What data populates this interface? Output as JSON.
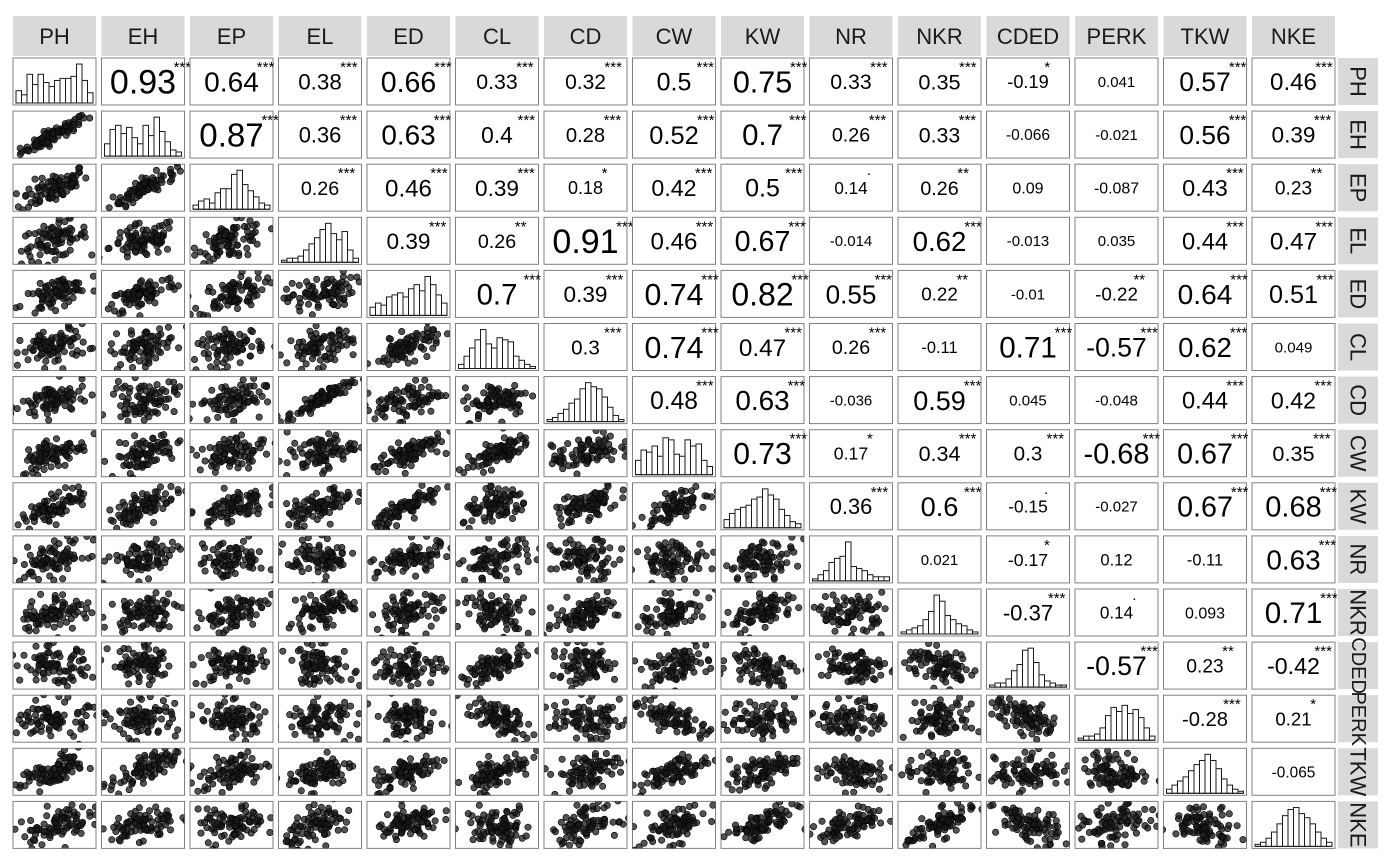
{
  "chart_data": {
    "type": "scatter-matrix",
    "variables": [
      "PH",
      "EH",
      "EP",
      "EL",
      "ED",
      "CL",
      "CD",
      "CW",
      "KW",
      "NR",
      "NKR",
      "CDED",
      "PERK",
      "TKW",
      "NKE"
    ],
    "upper_panel": "correlation coefficient with significance stars",
    "diagonal_panel": "histogram",
    "lower_panel": "scatter plot",
    "highlight_color": "#e0ffe0",
    "correlations": [
      {
        "row": "PH",
        "col": "EH",
        "r": "0.93",
        "stars": "***"
      },
      {
        "row": "PH",
        "col": "EP",
        "r": "0.64",
        "stars": "***"
      },
      {
        "row": "PH",
        "col": "EL",
        "r": "0.38",
        "stars": "***"
      },
      {
        "row": "PH",
        "col": "ED",
        "r": "0.66",
        "stars": "***"
      },
      {
        "row": "PH",
        "col": "CL",
        "r": "0.33",
        "stars": "***"
      },
      {
        "row": "PH",
        "col": "CD",
        "r": "0.32",
        "stars": "***"
      },
      {
        "row": "PH",
        "col": "CW",
        "r": "0.5",
        "stars": "***"
      },
      {
        "row": "PH",
        "col": "KW",
        "r": "0.75",
        "stars": "***"
      },
      {
        "row": "PH",
        "col": "NR",
        "r": "0.33",
        "stars": "***"
      },
      {
        "row": "PH",
        "col": "NKR",
        "r": "0.35",
        "stars": "***"
      },
      {
        "row": "PH",
        "col": "CDED",
        "r": "-0.19",
        "stars": "*"
      },
      {
        "row": "PH",
        "col": "PERK",
        "r": "0.041",
        "stars": ""
      },
      {
        "row": "PH",
        "col": "TKW",
        "r": "0.57",
        "stars": "***"
      },
      {
        "row": "PH",
        "col": "NKE",
        "r": "0.46",
        "stars": "***"
      },
      {
        "row": "EH",
        "col": "EP",
        "r": "0.87",
        "stars": "***"
      },
      {
        "row": "EH",
        "col": "EL",
        "r": "0.36",
        "stars": "***"
      },
      {
        "row": "EH",
        "col": "ED",
        "r": "0.63",
        "stars": "***"
      },
      {
        "row": "EH",
        "col": "CL",
        "r": "0.4",
        "stars": "***"
      },
      {
        "row": "EH",
        "col": "CD",
        "r": "0.28",
        "stars": "***"
      },
      {
        "row": "EH",
        "col": "CW",
        "r": "0.52",
        "stars": "***"
      },
      {
        "row": "EH",
        "col": "KW",
        "r": "0.7",
        "stars": "***"
      },
      {
        "row": "EH",
        "col": "NR",
        "r": "0.26",
        "stars": "***"
      },
      {
        "row": "EH",
        "col": "NKR",
        "r": "0.33",
        "stars": "***"
      },
      {
        "row": "EH",
        "col": "CDED",
        "r": "-0.066",
        "stars": ""
      },
      {
        "row": "EH",
        "col": "PERK",
        "r": "-0.021",
        "stars": ""
      },
      {
        "row": "EH",
        "col": "TKW",
        "r": "0.56",
        "stars": "***"
      },
      {
        "row": "EH",
        "col": "NKE",
        "r": "0.39",
        "stars": "***"
      },
      {
        "row": "EP",
        "col": "EL",
        "r": "0.26",
        "stars": "***"
      },
      {
        "row": "EP",
        "col": "ED",
        "r": "0.46",
        "stars": "***"
      },
      {
        "row": "EP",
        "col": "CL",
        "r": "0.39",
        "stars": "***"
      },
      {
        "row": "EP",
        "col": "CD",
        "r": "0.18",
        "stars": "*"
      },
      {
        "row": "EP",
        "col": "CW",
        "r": "0.42",
        "stars": "***"
      },
      {
        "row": "EP",
        "col": "KW",
        "r": "0.5",
        "stars": "***"
      },
      {
        "row": "EP",
        "col": "NR",
        "r": "0.14",
        "stars": "·"
      },
      {
        "row": "EP",
        "col": "NKR",
        "r": "0.26",
        "stars": "**"
      },
      {
        "row": "EP",
        "col": "CDED",
        "r": "0.09",
        "stars": ""
      },
      {
        "row": "EP",
        "col": "PERK",
        "r": "-0.087",
        "stars": ""
      },
      {
        "row": "EP",
        "col": "TKW",
        "r": "0.43",
        "stars": "***"
      },
      {
        "row": "EP",
        "col": "NKE",
        "r": "0.23",
        "stars": "**"
      },
      {
        "row": "EL",
        "col": "ED",
        "r": "0.39",
        "stars": "***"
      },
      {
        "row": "EL",
        "col": "CL",
        "r": "0.26",
        "stars": "**"
      },
      {
        "row": "EL",
        "col": "CD",
        "r": "0.91",
        "stars": "***"
      },
      {
        "row": "EL",
        "col": "CW",
        "r": "0.46",
        "stars": "***"
      },
      {
        "row": "EL",
        "col": "KW",
        "r": "0.67",
        "stars": "***"
      },
      {
        "row": "EL",
        "col": "NR",
        "r": "-0.014",
        "stars": ""
      },
      {
        "row": "EL",
        "col": "NKR",
        "r": "0.62",
        "stars": "***"
      },
      {
        "row": "EL",
        "col": "CDED",
        "r": "-0.013",
        "stars": ""
      },
      {
        "row": "EL",
        "col": "PERK",
        "r": "0.035",
        "stars": ""
      },
      {
        "row": "EL",
        "col": "TKW",
        "r": "0.44",
        "stars": "***"
      },
      {
        "row": "EL",
        "col": "NKE",
        "r": "0.47",
        "stars": "***"
      },
      {
        "row": "ED",
        "col": "CL",
        "r": "0.7",
        "stars": "***"
      },
      {
        "row": "ED",
        "col": "CD",
        "r": "0.39",
        "stars": "***"
      },
      {
        "row": "ED",
        "col": "CW",
        "r": "0.74",
        "stars": "***"
      },
      {
        "row": "ED",
        "col": "KW",
        "r": "0.82",
        "stars": "***"
      },
      {
        "row": "ED",
        "col": "NR",
        "r": "0.55",
        "stars": "***"
      },
      {
        "row": "ED",
        "col": "NKR",
        "r": "0.22",
        "stars": "**"
      },
      {
        "row": "ED",
        "col": "CDED",
        "r": "-0.01",
        "stars": ""
      },
      {
        "row": "ED",
        "col": "PERK",
        "r": "-0.22",
        "stars": "**"
      },
      {
        "row": "ED",
        "col": "TKW",
        "r": "0.64",
        "stars": "***"
      },
      {
        "row": "ED",
        "col": "NKE",
        "r": "0.51",
        "stars": "***"
      },
      {
        "row": "CL",
        "col": "CD",
        "r": "0.3",
        "stars": "***"
      },
      {
        "row": "CL",
        "col": "CW",
        "r": "0.74",
        "stars": "***"
      },
      {
        "row": "CL",
        "col": "KW",
        "r": "0.47",
        "stars": "***"
      },
      {
        "row": "CL",
        "col": "NR",
        "r": "0.26",
        "stars": "***"
      },
      {
        "row": "CL",
        "col": "NKR",
        "r": "-0.11",
        "stars": ""
      },
      {
        "row": "CL",
        "col": "CDED",
        "r": "0.71",
        "stars": "***"
      },
      {
        "row": "CL",
        "col": "PERK",
        "r": "-0.57",
        "stars": "***"
      },
      {
        "row": "CL",
        "col": "TKW",
        "r": "0.62",
        "stars": "***"
      },
      {
        "row": "CL",
        "col": "NKE",
        "r": "0.049",
        "stars": ""
      },
      {
        "row": "CD",
        "col": "CW",
        "r": "0.48",
        "stars": "***"
      },
      {
        "row": "CD",
        "col": "KW",
        "r": "0.63",
        "stars": "***"
      },
      {
        "row": "CD",
        "col": "NR",
        "r": "-0.036",
        "stars": ""
      },
      {
        "row": "CD",
        "col": "NKR",
        "r": "0.59",
        "stars": "***"
      },
      {
        "row": "CD",
        "col": "CDED",
        "r": "0.045",
        "stars": ""
      },
      {
        "row": "CD",
        "col": "PERK",
        "r": "-0.048",
        "stars": ""
      },
      {
        "row": "CD",
        "col": "TKW",
        "r": "0.44",
        "stars": "***"
      },
      {
        "row": "CD",
        "col": "NKE",
        "r": "0.42",
        "stars": "***"
      },
      {
        "row": "CW",
        "col": "KW",
        "r": "0.73",
        "stars": "***"
      },
      {
        "row": "CW",
        "col": "NR",
        "r": "0.17",
        "stars": "*"
      },
      {
        "row": "CW",
        "col": "NKR",
        "r": "0.34",
        "stars": "***"
      },
      {
        "row": "CW",
        "col": "CDED",
        "r": "0.3",
        "stars": "***"
      },
      {
        "row": "CW",
        "col": "PERK",
        "r": "-0.68",
        "stars": "***"
      },
      {
        "row": "CW",
        "col": "TKW",
        "r": "0.67",
        "stars": "***"
      },
      {
        "row": "CW",
        "col": "NKE",
        "r": "0.35",
        "stars": "***"
      },
      {
        "row": "KW",
        "col": "NR",
        "r": "0.36",
        "stars": "***"
      },
      {
        "row": "KW",
        "col": "NKR",
        "r": "0.6",
        "stars": "***"
      },
      {
        "row": "KW",
        "col": "CDED",
        "r": "-0.15",
        "stars": "·"
      },
      {
        "row": "KW",
        "col": "PERK",
        "r": "-0.027",
        "stars": ""
      },
      {
        "row": "KW",
        "col": "TKW",
        "r": "0.67",
        "stars": "***"
      },
      {
        "row": "KW",
        "col": "NKE",
        "r": "0.68",
        "stars": "***"
      },
      {
        "row": "NR",
        "col": "NKR",
        "r": "0.021",
        "stars": ""
      },
      {
        "row": "NR",
        "col": "CDED",
        "r": "-0.17",
        "stars": "*"
      },
      {
        "row": "NR",
        "col": "PERK",
        "r": "0.12",
        "stars": ""
      },
      {
        "row": "NR",
        "col": "TKW",
        "r": "-0.11",
        "stars": ""
      },
      {
        "row": "NR",
        "col": "NKE",
        "r": "0.63",
        "stars": "***"
      },
      {
        "row": "NKR",
        "col": "CDED",
        "r": "-0.37",
        "stars": "***"
      },
      {
        "row": "NKR",
        "col": "PERK",
        "r": "0.14",
        "stars": "·"
      },
      {
        "row": "NKR",
        "col": "TKW",
        "r": "0.093",
        "stars": ""
      },
      {
        "row": "NKR",
        "col": "NKE",
        "r": "0.71",
        "stars": "***"
      },
      {
        "row": "CDED",
        "col": "PERK",
        "r": "-0.57",
        "stars": "***"
      },
      {
        "row": "CDED",
        "col": "TKW",
        "r": "0.23",
        "stars": "**"
      },
      {
        "row": "CDED",
        "col": "NKE",
        "r": "-0.42",
        "stars": "***"
      },
      {
        "row": "PERK",
        "col": "TKW",
        "r": "-0.28",
        "stars": "***"
      },
      {
        "row": "PERK",
        "col": "NKE",
        "r": "0.21",
        "stars": "*"
      },
      {
        "row": "TKW",
        "col": "NKE",
        "r": "-0.065",
        "stars": ""
      }
    ],
    "histograms": {
      "PH": [
        0.3,
        0.2,
        0.7,
        0.45,
        0.7,
        0.5,
        0.4,
        0.55,
        0.6,
        0.6,
        0.65,
        0.95,
        0.55,
        0.25
      ],
      "EH": [
        0.3,
        0.65,
        0.75,
        0.55,
        0.7,
        0.45,
        0.3,
        0.75,
        0.5,
        0.95,
        0.6,
        0.35,
        0.15,
        0.1
      ],
      "EP": [
        0.1,
        0.2,
        0.25,
        0.15,
        0.4,
        0.5,
        0.5,
        0.85,
        0.95,
        0.6,
        0.45,
        0.3,
        0.15,
        0.1
      ],
      "EL": [
        0.05,
        0.1,
        0.1,
        0.15,
        0.3,
        0.45,
        0.6,
        0.8,
        0.95,
        0.7,
        0.55,
        0.75,
        0.3,
        0.1
      ],
      "ED": [
        0.2,
        0.3,
        0.25,
        0.45,
        0.5,
        0.55,
        0.45,
        0.65,
        0.75,
        0.6,
        0.95,
        0.75,
        0.5,
        0.3
      ],
      "CL": [
        0.1,
        0.3,
        0.5,
        0.7,
        0.95,
        0.6,
        0.5,
        0.75,
        0.7,
        0.65,
        0.3,
        0.2,
        0.1,
        0.05
      ],
      "CD": [
        0.05,
        0.1,
        0.2,
        0.3,
        0.45,
        0.55,
        0.8,
        0.95,
        0.85,
        0.8,
        0.6,
        0.35,
        0.15,
        0.05
      ],
      "CW": [
        0.35,
        0.6,
        0.55,
        0.7,
        0.45,
        0.9,
        0.85,
        0.5,
        0.45,
        0.85,
        0.7,
        0.75,
        0.35,
        0.2
      ],
      "KW": [
        0.2,
        0.35,
        0.45,
        0.5,
        0.55,
        0.7,
        0.75,
        0.95,
        0.8,
        0.7,
        0.45,
        0.3,
        0.15,
        0.1
      ],
      "NR": [
        0.05,
        0.15,
        0.25,
        0.45,
        0.55,
        0.6,
        0.95,
        0.35,
        0.3,
        0.25,
        0.15,
        0.1,
        0.1,
        0.1
      ],
      "NKR": [
        0.05,
        0.1,
        0.15,
        0.2,
        0.35,
        0.55,
        0.95,
        0.8,
        0.45,
        0.35,
        0.25,
        0.2,
        0.1,
        0.05
      ],
      "CDED": [
        0.05,
        0.1,
        0.1,
        0.2,
        0.4,
        0.55,
        0.9,
        0.95,
        0.6,
        0.3,
        0.15,
        0.1,
        0.05,
        0.05
      ],
      "PERK": [
        0.05,
        0.1,
        0.1,
        0.15,
        0.3,
        0.6,
        0.8,
        0.7,
        0.85,
        0.65,
        0.75,
        0.55,
        0.3,
        0.1
      ],
      "TKW": [
        0.1,
        0.2,
        0.3,
        0.4,
        0.55,
        0.7,
        0.8,
        0.95,
        0.8,
        0.6,
        0.35,
        0.2,
        0.1,
        0.05
      ],
      "NKE": [
        0.05,
        0.1,
        0.2,
        0.35,
        0.55,
        0.75,
        0.9,
        0.95,
        0.8,
        0.7,
        0.55,
        0.35,
        0.2,
        0.1
      ]
    }
  }
}
